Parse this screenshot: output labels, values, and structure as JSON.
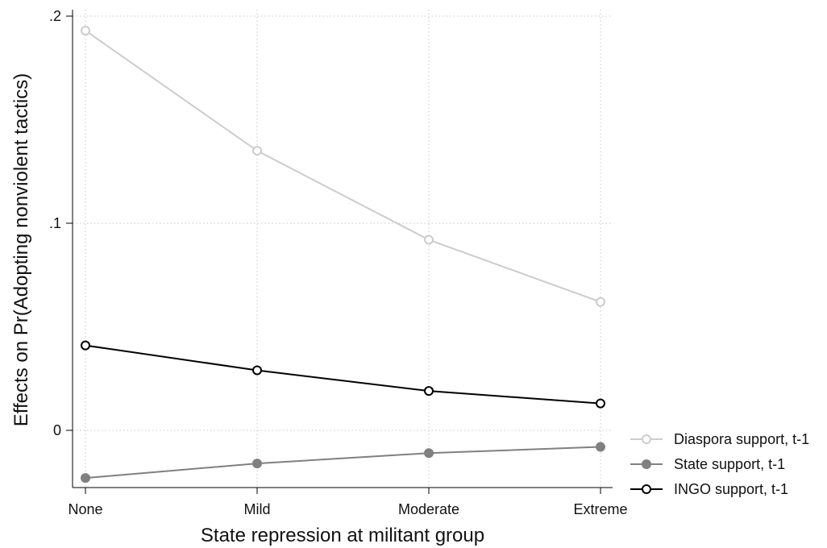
{
  "chart_data": {
    "type": "line",
    "xlabel": "State repression at militant group",
    "ylabel": "Effects on Pr(Adopting nonviolent tactics)",
    "categories": [
      "None",
      "Mild",
      "Moderate",
      "Extreme"
    ],
    "ylim": [
      -0.027,
      0.2
    ],
    "yticks": [
      0,
      0.1,
      0.2
    ],
    "ytick_labels": [
      "0",
      ".1",
      ".2"
    ],
    "grid": true,
    "legend_position": "right",
    "series": [
      {
        "name": "Diaspora support, t-1",
        "values": [
          0.193,
          0.135,
          0.092,
          0.062
        ],
        "color": "#cccccc",
        "marker": "hollow-circle"
      },
      {
        "name": "State support, t-1",
        "values": [
          -0.023,
          -0.016,
          -0.011,
          -0.008
        ],
        "color": "#808080",
        "marker": "filled-circle"
      },
      {
        "name": "INGO support, t-1",
        "values": [
          0.041,
          0.029,
          0.019,
          0.013
        ],
        "color": "#000000",
        "marker": "hollow-circle"
      }
    ]
  }
}
